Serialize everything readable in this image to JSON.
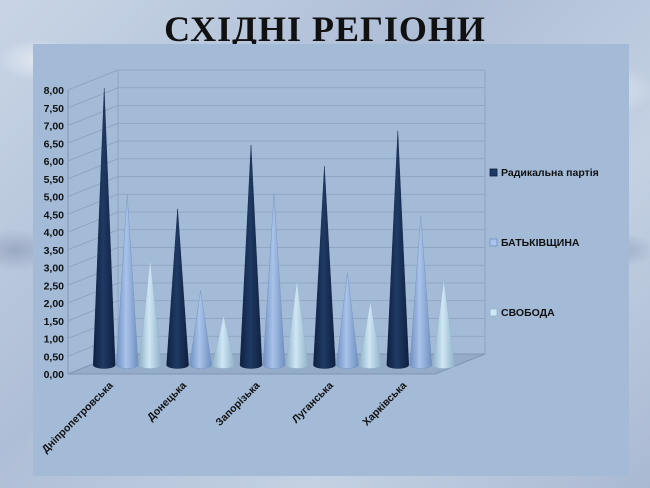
{
  "slide": {
    "title": "СХІДНІ РЕГІОНИ"
  },
  "colors": {
    "series": [
      "#1f3a64",
      "#a9c3ea",
      "#cfe6f4"
    ],
    "series_dark": [
      "#0f2040",
      "#6f8fc0",
      "#8fb2c8"
    ]
  },
  "chart_data": {
    "type": "bar",
    "shape": "3d-cone",
    "title": "",
    "xlabel": "",
    "ylabel": "",
    "ylim": [
      0,
      8
    ],
    "yticks": [
      "0,00",
      "0,50",
      "1,00",
      "1,50",
      "2,00",
      "2,50",
      "3,00",
      "3,50",
      "4,00",
      "4,50",
      "5,00",
      "5,50",
      "6,00",
      "6,50",
      "7,00",
      "7,50",
      "8,00"
    ],
    "grid": true,
    "legend_position": "right",
    "categories": [
      "Дніпропетровська",
      "Донецька",
      "Запорізька",
      "Луганська",
      "Харківська"
    ],
    "series": [
      {
        "name": "Радикальна партія",
        "values": [
          7.8,
          4.4,
          6.2,
          5.6,
          6.6
        ]
      },
      {
        "name": "БАТЬКІВЩИНА",
        "values": [
          4.8,
          2.1,
          4.8,
          2.6,
          4.2
        ]
      },
      {
        "name": "СВОБОДА",
        "values": [
          3.0,
          1.4,
          2.4,
          1.8,
          2.4
        ]
      }
    ]
  }
}
